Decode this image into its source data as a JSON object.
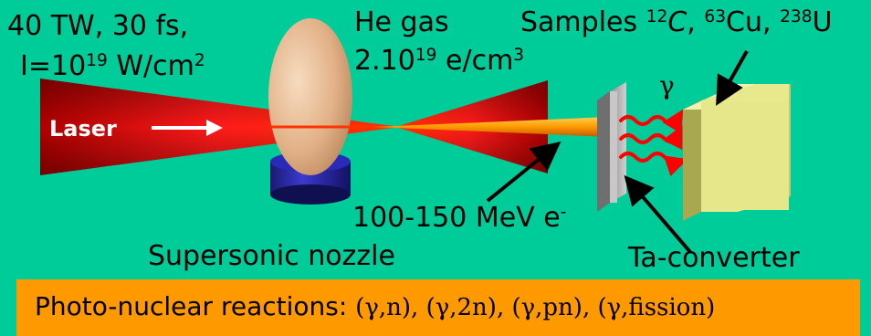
{
  "params": {
    "line1": "40 TW, 30 fs,",
    "line2_prefix": "I=10",
    "line2_exp": "19",
    "line2_mid": " W/cm",
    "line2_exp2": "2"
  },
  "gas": {
    "line1": "He gas",
    "line2_prefix": "2.10",
    "line2_exp": "19",
    "line2_mid": " e/cm",
    "line2_exp2": "3"
  },
  "samples": {
    "prefix": "Samples ",
    "s1_mass": "12",
    "s1_sym": "C",
    "s2_mass": "63",
    "s2_sym": "Cu",
    "s3_mass": "238",
    "s3_sym": "U",
    "sep": ", "
  },
  "laser_label": "Laser",
  "gamma_label": "γ",
  "electrons": {
    "text": "100-150 MeV e",
    "sup": "-"
  },
  "nozzle_label": "Supersonic nozzle",
  "converter_label": "Ta-converter",
  "reactions": {
    "label": "Photo-nuclear reactions",
    "colon": ": ",
    "list": "(γ,n), (γ,2n), (γ,pn), (γ,fission)"
  },
  "colors": {
    "background": "#00cc99",
    "banner": "#ff9900",
    "laser": "#ff0000",
    "beam": "#ff9900",
    "gas_jet": "#e8b888",
    "nozzle": "#1a1aa8",
    "converter": "#b8b8b8",
    "sample": "#e8e88c",
    "gamma_waves": "#ff0000"
  },
  "icons": {
    "laser_arrow": "right-arrow-icon",
    "pointer_arrows": "black-arrow-icon",
    "gamma_waves": "wavy-arrow-icon"
  }
}
